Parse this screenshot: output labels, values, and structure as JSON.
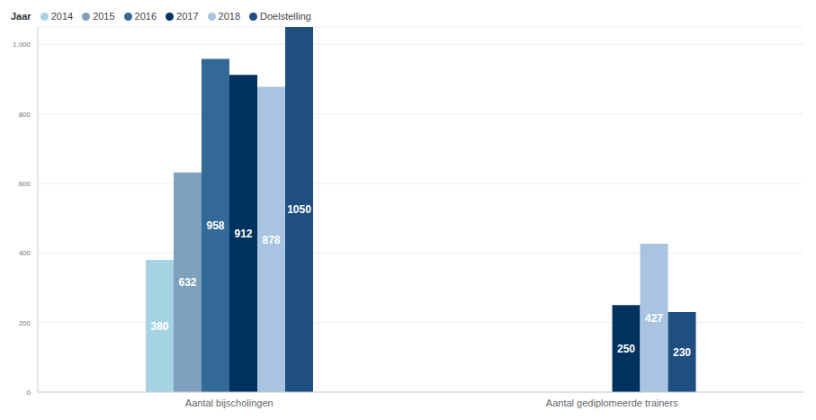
{
  "chart_data": {
    "type": "bar",
    "legend_title": "Jaar",
    "categories": [
      "Aantal bijscholingen",
      "Aantal gediplomeerde trainers"
    ],
    "series": [
      {
        "name": "2014",
        "color": "#a6d3e3",
        "values": [
          380,
          null
        ]
      },
      {
        "name": "2015",
        "color": "#7fa0bd",
        "values": [
          632,
          null
        ]
      },
      {
        "name": "2016",
        "color": "#336997",
        "values": [
          958,
          null
        ]
      },
      {
        "name": "2017",
        "color": "#00325f",
        "values": [
          912,
          250
        ]
      },
      {
        "name": "2018",
        "color": "#a8c4e0",
        "values": [
          878,
          427
        ]
      },
      {
        "name": "Doelstelling",
        "color": "#1f4e80",
        "values": [
          1050,
          230
        ]
      }
    ],
    "ylim": [
      0,
      1050
    ],
    "yticks": [
      0,
      200,
      400,
      600,
      {
        "value": 800,
        "label": "800"
      },
      {
        "value": 1000,
        "label": "1,000"
      }
    ],
    "grid": true,
    "legend": "top-left",
    "data_labels": true
  }
}
